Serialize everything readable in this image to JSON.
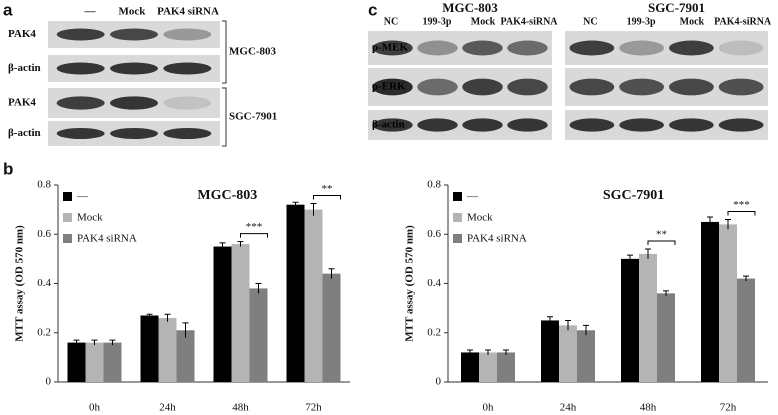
{
  "panel_labels": [
    "a",
    "b",
    "c"
  ],
  "blot_a": {
    "lanes": [
      "—",
      "Mock",
      "PAK4 siRNA"
    ],
    "rows": [
      "PAK4",
      "β-actin",
      "PAK4",
      "β-actin"
    ],
    "cell_lines": [
      "MGC-803",
      "SGC-7901"
    ]
  },
  "blot_c": {
    "blots": [
      {
        "title": "MGC-803",
        "lanes": [
          "NC",
          "199-3p",
          "Mock",
          "PAK4-siRNA"
        ]
      },
      {
        "title": "SGC-7901",
        "lanes": [
          "NC",
          "199-3p",
          "Mock",
          "PAK4-siRNA"
        ]
      }
    ],
    "rows": [
      "p-MEK",
      "p-ERK",
      "β-actin"
    ]
  },
  "chart_data": [
    {
      "type": "bar",
      "title": "MGC-803",
      "y_label": "MTT assay (OD 570 nm)",
      "categories": [
        "0h",
        "24h",
        "48h",
        "72h"
      ],
      "series": [
        {
          "name": "—",
          "color": "#000000",
          "values": [
            0.16,
            0.27,
            0.55,
            0.72
          ],
          "errors": [
            0.01,
            0.005,
            0.015,
            0.01
          ]
        },
        {
          "name": "Mock",
          "color": "#b4b4b4",
          "values": [
            0.16,
            0.26,
            0.56,
            0.7
          ],
          "errors": [
            0.01,
            0.015,
            0.01,
            0.025
          ]
        },
        {
          "name": "PAK4 siRNA",
          "color": "#7f7f7f",
          "values": [
            0.16,
            0.21,
            0.38,
            0.44
          ],
          "errors": [
            0.01,
            0.03,
            0.02,
            0.02
          ]
        }
      ],
      "significance": [
        null,
        null,
        "***",
        "**"
      ],
      "ylim": [
        0,
        0.8
      ],
      "yticks": [
        0,
        0.2,
        0.4,
        0.6,
        0.8
      ]
    },
    {
      "type": "bar",
      "title": "SGC-7901",
      "y_label": "MTT assay (OD 570 nm)",
      "categories": [
        "0h",
        "24h",
        "48h",
        "72h"
      ],
      "series": [
        {
          "name": "—",
          "color": "#000000",
          "values": [
            0.12,
            0.25,
            0.5,
            0.65
          ],
          "errors": [
            0.01,
            0.015,
            0.015,
            0.02
          ]
        },
        {
          "name": "Mock",
          "color": "#b4b4b4",
          "values": [
            0.12,
            0.23,
            0.52,
            0.64
          ],
          "errors": [
            0.01,
            0.02,
            0.02,
            0.02
          ]
        },
        {
          "name": "PAK4 siRNA",
          "color": "#7f7f7f",
          "values": [
            0.12,
            0.21,
            0.36,
            0.42
          ],
          "errors": [
            0.01,
            0.02,
            0.01,
            0.01
          ]
        }
      ],
      "significance": [
        null,
        null,
        "**",
        "***"
      ],
      "ylim": [
        0,
        0.8
      ],
      "yticks": [
        0,
        0.2,
        0.4,
        0.6,
        0.8
      ]
    }
  ]
}
